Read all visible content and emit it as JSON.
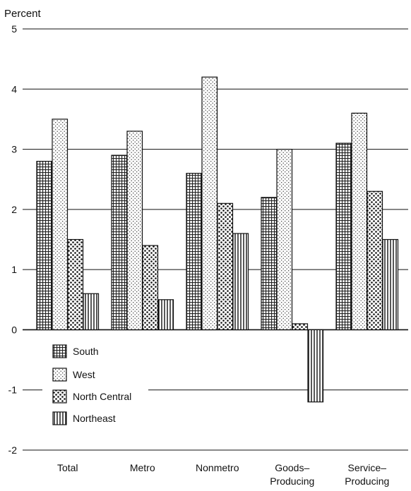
{
  "chart_data": {
    "type": "bar",
    "ylabel": "Percent",
    "ylim": [
      -2,
      5
    ],
    "yticks": [
      -2,
      -1,
      0,
      1,
      2,
      3,
      4,
      5
    ],
    "grid": "horizontal",
    "legend_position": "bottom-left",
    "categories": [
      "Total",
      "Metro",
      "Nonmetro",
      "Goods–\nProducing",
      "Service–\nProducing"
    ],
    "series": [
      {
        "name": "South",
        "pattern": "grid",
        "values": [
          2.8,
          2.9,
          2.6,
          2.2,
          3.1
        ]
      },
      {
        "name": "West",
        "pattern": "light-dots",
        "values": [
          3.5,
          3.3,
          4.2,
          3.0,
          3.6
        ]
      },
      {
        "name": "North Central",
        "pattern": "heavy-dots",
        "values": [
          1.5,
          1.4,
          2.1,
          0.1,
          2.3
        ]
      },
      {
        "name": "Northeast",
        "pattern": "vertical-lines",
        "values": [
          0.6,
          0.5,
          1.6,
          -1.2,
          1.5
        ]
      }
    ]
  }
}
